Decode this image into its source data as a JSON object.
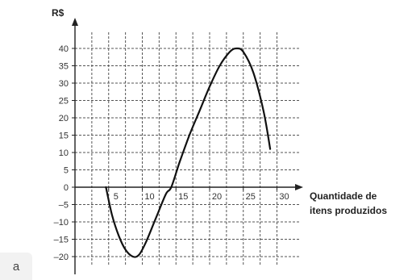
{
  "chart_data": {
    "type": "line",
    "ylabel": "R$",
    "xlabel_lines": [
      "Quantidade de",
      "itens produzidos"
    ],
    "x_ticks": [
      5,
      10,
      15,
      20,
      25,
      30
    ],
    "y_ticks": [
      40,
      35,
      30,
      25,
      20,
      15,
      10,
      5,
      0,
      -5,
      -10,
      -15,
      -20
    ],
    "y_tick_labels": [
      "40",
      "35",
      "30",
      "25",
      "20",
      "15",
      "10",
      "5",
      "0",
      "–5",
      "–10",
      "–15",
      "–20"
    ],
    "xlim": [
      0,
      30
    ],
    "ylim": [
      -20,
      40
    ],
    "grid": true,
    "x_grid_step": 2.5,
    "y_grid_step": 5,
    "series": [
      {
        "points": [
          [
            4.6,
            0
          ],
          [
            5.5,
            -8
          ],
          [
            6.5,
            -14
          ],
          [
            7.5,
            -18
          ],
          [
            8.6,
            -20
          ],
          [
            9.5,
            -19.5
          ],
          [
            10.5,
            -16
          ],
          [
            12,
            -9
          ],
          [
            13.5,
            -2
          ],
          [
            14.3,
            0
          ],
          [
            15.5,
            7
          ],
          [
            17,
            15
          ],
          [
            18.5,
            22
          ],
          [
            20,
            29
          ],
          [
            21.5,
            35
          ],
          [
            23,
            39
          ],
          [
            24,
            40
          ],
          [
            25,
            39
          ],
          [
            26.5,
            33
          ],
          [
            28,
            22
          ],
          [
            29,
            11
          ]
        ]
      }
    ]
  },
  "corner_mark": "a"
}
